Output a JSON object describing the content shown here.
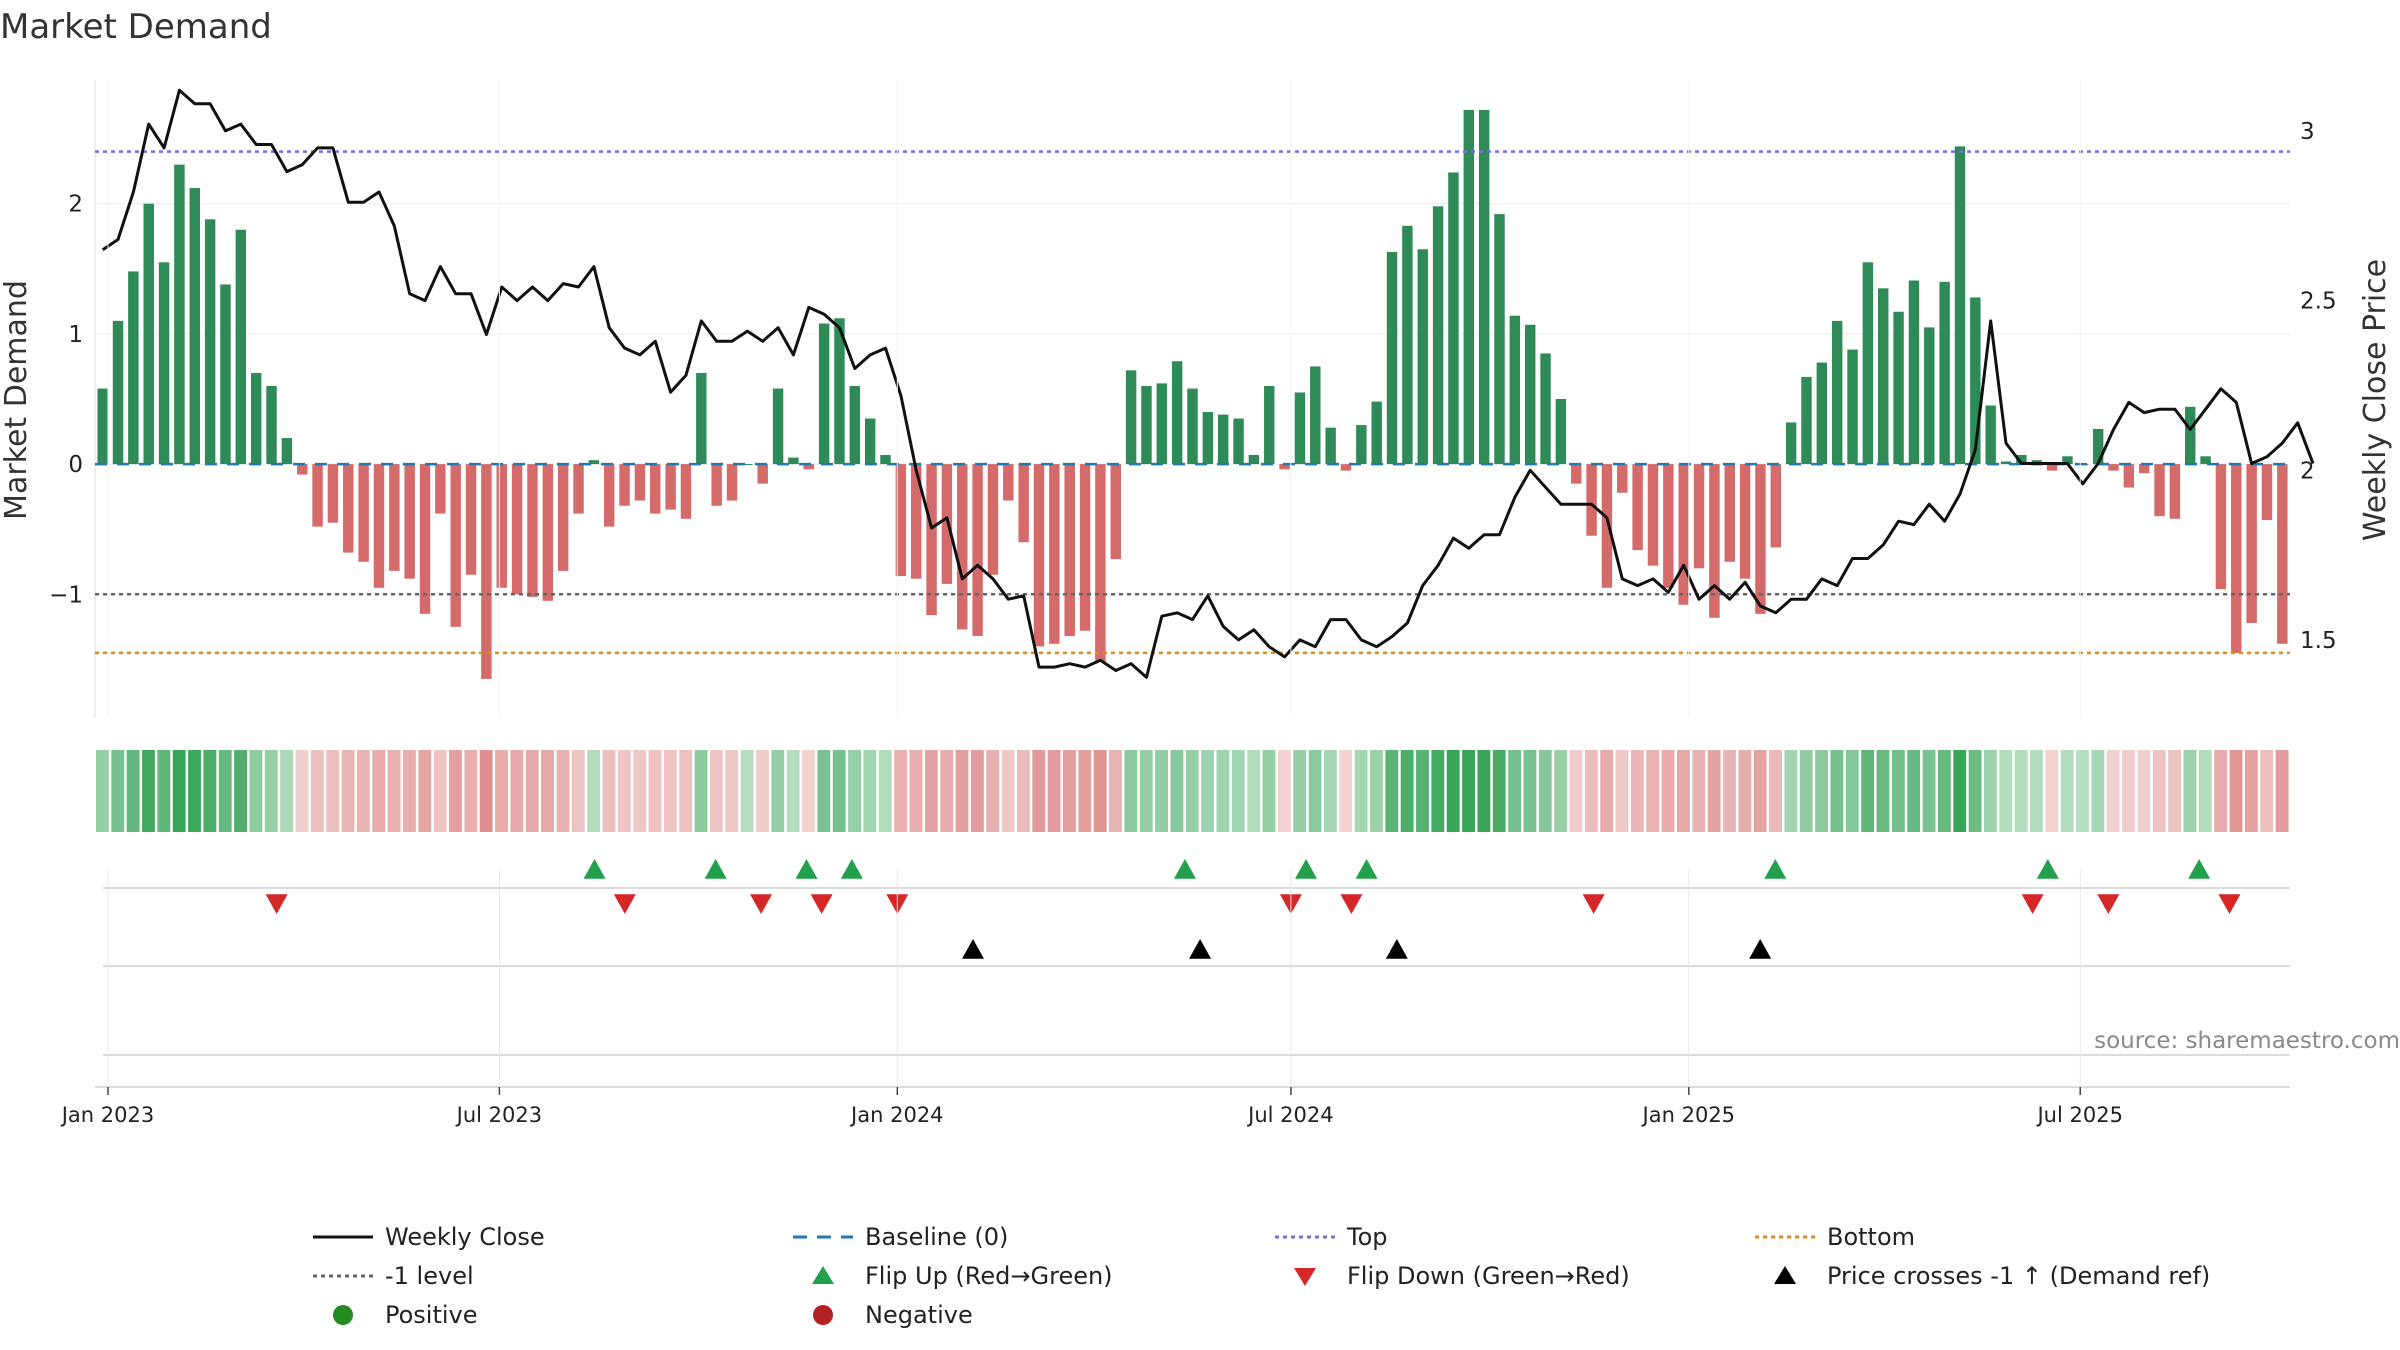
{
  "chart_data": {
    "type": "bar",
    "title": "Market Demand",
    "ylabel": "Market Demand",
    "y2label": "Weekly Close Price",
    "ylim": [
      -1.95,
      2.95
    ],
    "y2lim": [
      1.27,
      3.15
    ],
    "yticks": [
      "−1",
      "0",
      "1",
      "2"
    ],
    "y2ticks": [
      "1.5",
      "2",
      "2.5",
      "3"
    ],
    "x_start": "2022-12-26",
    "x_end": "2025-10-06",
    "x_ticks": [
      "Jan 2023",
      "Jul 2023",
      "Jan 2024",
      "Jul 2024",
      "Jan 2025",
      "Jul 2025"
    ],
    "levels": {
      "top": 2.4,
      "minus_one": -1,
      "bottom": -1.45
    },
    "demand": [
      0.58,
      1.1,
      1.48,
      2.0,
      1.55,
      2.3,
      2.12,
      1.88,
      1.38,
      1.8,
      0.7,
      0.6,
      0.2,
      -0.08,
      -0.48,
      -0.45,
      -0.68,
      -0.75,
      -0.95,
      -0.82,
      -0.88,
      -1.15,
      -0.38,
      -1.25,
      -0.85,
      -1.65,
      -0.95,
      -1.0,
      -1.02,
      -1.05,
      -0.82,
      -0.38,
      0.03,
      -0.48,
      -0.32,
      -0.28,
      -0.38,
      -0.35,
      -0.42,
      0.7,
      -0.32,
      -0.28,
      0.0,
      -0.15,
      0.58,
      0.05,
      -0.04,
      1.08,
      1.12,
      0.6,
      0.35,
      0.07,
      -0.86,
      -0.88,
      -1.16,
      -0.92,
      -1.27,
      -1.32,
      -0.85,
      -0.28,
      -0.6,
      -1.4,
      -1.38,
      -1.32,
      -1.28,
      -1.52,
      -0.73,
      0.72,
      0.6,
      0.62,
      0.79,
      0.58,
      0.4,
      0.38,
      0.35,
      0.07,
      0.6,
      -0.04,
      0.55,
      0.75,
      0.28,
      -0.05,
      0.3,
      0.48,
      1.63,
      1.83,
      1.65,
      1.98,
      2.24,
      2.72,
      2.72,
      1.92,
      1.14,
      1.07,
      0.85,
      0.5,
      -0.15,
      -0.55,
      -0.95,
      -0.22,
      -0.66,
      -0.78,
      -0.95,
      -1.08,
      -0.8,
      -1.18,
      -0.75,
      -0.88,
      -1.15,
      -0.64,
      0.32,
      0.67,
      0.78,
      1.1,
      0.88,
      1.55,
      1.35,
      1.17,
      1.41,
      1.05,
      1.4,
      2.44,
      1.28,
      0.45,
      0.02,
      0.07,
      0.03,
      -0.05,
      0.06,
      0.0,
      0.27,
      -0.05,
      -0.18,
      -0.07,
      -0.4,
      -0.42,
      0.44,
      0.06,
      -0.96,
      -1.45,
      -1.22,
      -0.43,
      -1.38
    ],
    "close": [
      2.65,
      2.68,
      2.82,
      3.02,
      2.95,
      3.12,
      3.08,
      3.08,
      3.0,
      3.02,
      2.96,
      2.96,
      2.88,
      2.9,
      2.95,
      2.95,
      2.79,
      2.79,
      2.82,
      2.72,
      2.52,
      2.5,
      2.6,
      2.52,
      2.52,
      2.4,
      2.54,
      2.5,
      2.54,
      2.5,
      2.55,
      2.54,
      2.6,
      2.42,
      2.36,
      2.34,
      2.38,
      2.23,
      2.28,
      2.44,
      2.38,
      2.38,
      2.41,
      2.38,
      2.42,
      2.34,
      2.48,
      2.46,
      2.42,
      2.3,
      2.34,
      2.36,
      2.22,
      2.0,
      1.83,
      1.86,
      1.68,
      1.72,
      1.68,
      1.62,
      1.63,
      1.42,
      1.42,
      1.43,
      1.42,
      1.44,
      1.41,
      1.43,
      1.39,
      1.57,
      1.58,
      1.56,
      1.63,
      1.54,
      1.5,
      1.53,
      1.48,
      1.45,
      1.5,
      1.48,
      1.56,
      1.56,
      1.5,
      1.48,
      1.51,
      1.55,
      1.66,
      1.72,
      1.8,
      1.77,
      1.81,
      1.81,
      1.92,
      2.0,
      1.95,
      1.9,
      1.9,
      1.9,
      1.86,
      1.68,
      1.66,
      1.68,
      1.64,
      1.72,
      1.62,
      1.66,
      1.62,
      1.67,
      1.6,
      1.58,
      1.62,
      1.62,
      1.68,
      1.66,
      1.74,
      1.74,
      1.78,
      1.85,
      1.84,
      1.9,
      1.85,
      1.93,
      2.06,
      2.44,
      2.08,
      2.02,
      2.02,
      2.02,
      2.02,
      1.96,
      2.02,
      2.12,
      2.2,
      2.17,
      2.18,
      2.18,
      2.12,
      2.18,
      2.24,
      2.2,
      2.02,
      2.04,
      2.08,
      2.14,
      2.02
    ],
    "flip_up": [
      "2023-08-14",
      "2023-10-09",
      "2023-11-20",
      "2023-12-11",
      "2024-05-13",
      "2024-07-08",
      "2024-08-05",
      "2025-02-10",
      "2025-06-16",
      "2025-08-25"
    ],
    "flip_down": [
      "2023-03-20",
      "2023-08-28",
      "2023-10-30",
      "2023-11-27",
      "2024-01-01",
      "2024-07-01",
      "2024-07-29",
      "2024-11-18",
      "2025-06-09",
      "2025-07-14",
      "2025-09-08"
    ],
    "price_cross": [
      "2024-02-05",
      "2024-05-20",
      "2024-08-19",
      "2025-02-03"
    ],
    "source": "source: sharemaestro.com",
    "colors": {
      "positive": "#2e8b57",
      "negative": "#d46a6a",
      "close": "#111111",
      "baseline": "#1f77b4",
      "top": "#7b6fd6",
      "minus_one": "#666666",
      "bottom": "#e08a1e",
      "flip_up": "#22a04b",
      "flip_down": "#d62728",
      "cross": "#000000",
      "legend_positive": "#228b22",
      "legend_negative": "#b22222"
    },
    "legend": [
      {
        "label": "Weekly Close",
        "kind": "line-solid",
        "color": "#111111"
      },
      {
        "label": "Baseline (0)",
        "kind": "line-dash",
        "color": "#1f77b4"
      },
      {
        "label": "Top",
        "kind": "line-dot",
        "color": "#7b6fd6"
      },
      {
        "label": "Bottom",
        "kind": "line-dot",
        "color": "#e08a1e"
      },
      {
        "label": "-1 level",
        "kind": "line-dot",
        "color": "#666666"
      },
      {
        "label": "Flip Up (Red→Green)",
        "kind": "tri-up",
        "color": "#22a04b"
      },
      {
        "label": "Flip Down (Green→Red)",
        "kind": "tri-down",
        "color": "#d62728"
      },
      {
        "label": "Price crosses -1 ↑ (Demand ref)",
        "kind": "tri-up",
        "color": "#000000"
      },
      {
        "label": "Positive",
        "kind": "dot",
        "color": "#228b22"
      },
      {
        "label": "Negative",
        "kind": "dot",
        "color": "#b22222"
      }
    ]
  }
}
